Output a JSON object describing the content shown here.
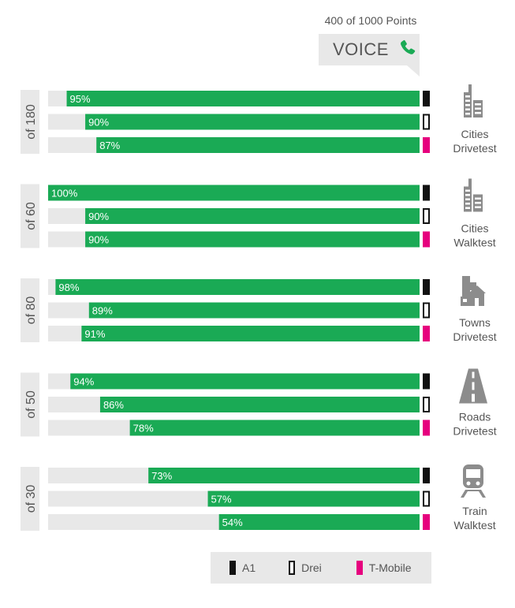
{
  "header": {
    "points_text": "400 of 1000 Points",
    "category": "VOICE",
    "phone_icon": "phone-icon"
  },
  "colors": {
    "bar": "#1aaa55",
    "track": "#e8e8e8",
    "group_label_bg": "#e8e8e8",
    "text": "#555555",
    "a1": "#111111",
    "drei": "#ffffff",
    "tmobile": "#e6007e",
    "icon": "#8c8c8c"
  },
  "legend": [
    {
      "name": "A1",
      "color": "#111111",
      "style": "solid"
    },
    {
      "name": "Drei",
      "color": "#ffffff",
      "style": "outline"
    },
    {
      "name": "T-Mobile",
      "color": "#e6007e",
      "style": "solid"
    }
  ],
  "chart_data": {
    "type": "bar",
    "orientation": "horizontal",
    "xlim": [
      0,
      100
    ],
    "groups": [
      {
        "points_label": "of 180",
        "category_line1": "Cities",
        "category_line2": "Drivetest",
        "icon": "city-buildings-icon",
        "bars": [
          {
            "operator": "A1",
            "value": 95,
            "label": "95%"
          },
          {
            "operator": "Drei",
            "value": 90,
            "label": "90%"
          },
          {
            "operator": "T-Mobile",
            "value": 87,
            "label": "87%"
          }
        ]
      },
      {
        "points_label": "of 60",
        "category_line1": "Cities",
        "category_line2": "Walktest",
        "icon": "city-buildings-icon",
        "bars": [
          {
            "operator": "A1",
            "value": 100,
            "label": "100%"
          },
          {
            "operator": "Drei",
            "value": 90,
            "label": "90%"
          },
          {
            "operator": "T-Mobile",
            "value": 90,
            "label": "90%"
          }
        ]
      },
      {
        "points_label": "of 80",
        "category_line1": "Towns",
        "category_line2": "Drivetest",
        "icon": "town-houses-icon",
        "bars": [
          {
            "operator": "A1",
            "value": 98,
            "label": "98%"
          },
          {
            "operator": "Drei",
            "value": 89,
            "label": "89%"
          },
          {
            "operator": "T-Mobile",
            "value": 91,
            "label": "91%"
          }
        ]
      },
      {
        "points_label": "of 50",
        "category_line1": "Roads",
        "category_line2": "Drivetest",
        "icon": "road-icon",
        "bars": [
          {
            "operator": "A1",
            "value": 94,
            "label": "94%"
          },
          {
            "operator": "Drei",
            "value": 86,
            "label": "86%"
          },
          {
            "operator": "T-Mobile",
            "value": 78,
            "label": "78%"
          }
        ]
      },
      {
        "points_label": "of 30",
        "category_line1": "Train",
        "category_line2": "Walktest",
        "icon": "train-icon",
        "bars": [
          {
            "operator": "A1",
            "value": 73,
            "label": "73%"
          },
          {
            "operator": "Drei",
            "value": 57,
            "label": "57%"
          },
          {
            "operator": "T-Mobile",
            "value": 54,
            "label": "54%"
          }
        ]
      }
    ]
  }
}
